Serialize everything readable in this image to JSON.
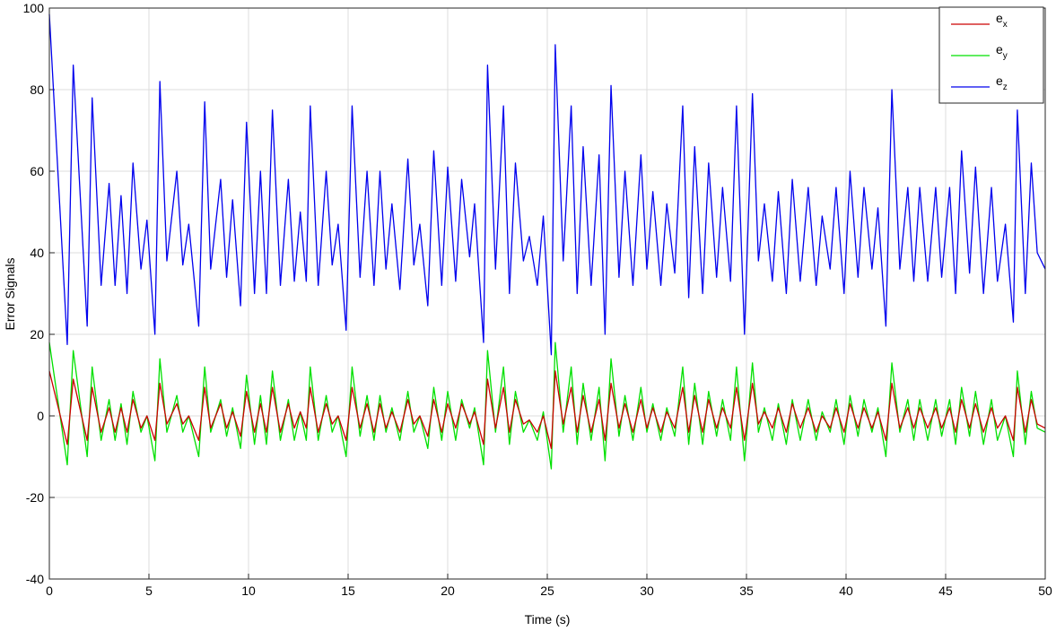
{
  "chart_data": {
    "type": "line",
    "xlabel": "Time (s)",
    "ylabel": "Error Signals",
    "xlim": [
      0,
      50
    ],
    "xticks": [
      0,
      5,
      10,
      15,
      20,
      25,
      30,
      35,
      40,
      45,
      50
    ],
    "ylim": [
      -40,
      100
    ],
    "yticks": [
      -40,
      -20,
      0,
      20,
      40,
      60,
      80,
      100
    ],
    "grid": true,
    "legend": "top-right",
    "x": [
      0,
      0.9,
      1.2,
      1.9,
      2.15,
      2.6,
      3.0,
      3.3,
      3.6,
      3.9,
      4.2,
      4.6,
      4.9,
      5.3,
      5.55,
      5.9,
      6.4,
      6.7,
      7.0,
      7.5,
      7.8,
      8.1,
      8.6,
      8.9,
      9.2,
      9.6,
      9.9,
      10.3,
      10.6,
      10.9,
      11.2,
      11.6,
      12.0,
      12.3,
      12.6,
      12.9,
      13.1,
      13.5,
      13.9,
      14.2,
      14.5,
      14.9,
      15.2,
      15.6,
      15.95,
      16.3,
      16.6,
      16.9,
      17.2,
      17.6,
      18.0,
      18.3,
      18.6,
      19.0,
      19.3,
      19.7,
      20.0,
      20.4,
      20.7,
      21.1,
      21.35,
      21.8,
      22.0,
      22.4,
      22.8,
      23.1,
      23.4,
      23.8,
      24.1,
      24.5,
      24.8,
      25.2,
      25.4,
      25.8,
      26.2,
      26.5,
      26.8,
      27.2,
      27.6,
      27.9,
      28.2,
      28.6,
      28.9,
      29.3,
      29.7,
      30.0,
      30.3,
      30.7,
      31.0,
      31.4,
      31.8,
      32.1,
      32.4,
      32.8,
      33.1,
      33.5,
      33.8,
      34.2,
      34.5,
      34.9,
      35.3,
      35.6,
      35.9,
      36.3,
      36.6,
      37.0,
      37.3,
      37.7,
      38.1,
      38.5,
      38.8,
      39.2,
      39.5,
      39.9,
      40.2,
      40.6,
      40.9,
      41.3,
      41.6,
      42.0,
      42.3,
      42.7,
      43.1,
      43.4,
      43.7,
      44.1,
      44.5,
      44.8,
      45.2,
      45.5,
      45.8,
      46.2,
      46.5,
      46.9,
      47.3,
      47.6,
      48.0,
      48.4,
      48.6,
      49.0,
      49.3,
      49.6,
      50
    ],
    "series": [
      {
        "name": "ex",
        "color": "#cc0000",
        "values": [
          11,
          -7,
          9,
          -6,
          7,
          -4,
          2,
          -4,
          2,
          -4,
          4,
          -3,
          0,
          -6,
          8,
          -2,
          3,
          -2,
          0,
          -6,
          7,
          -3,
          3,
          -3,
          1,
          -5,
          6,
          -4,
          3,
          -4,
          7,
          -4,
          3,
          -3,
          1,
          -3,
          7,
          -4,
          3,
          -2,
          0,
          -6,
          7,
          -3,
          3,
          -4,
          3,
          -3,
          1,
          -4,
          4,
          -2,
          0,
          -5,
          4,
          -4,
          3,
          -3,
          3,
          -2,
          1,
          -7,
          9,
          -3,
          7,
          -4,
          4,
          -2,
          -1,
          -4,
          0,
          -8,
          11,
          -2,
          7,
          -4,
          5,
          -4,
          4,
          -6,
          8,
          -3,
          3,
          -4,
          4,
          -3,
          2,
          -4,
          1,
          -3,
          7,
          -4,
          5,
          -4,
          4,
          -3,
          2,
          -3,
          7,
          -6,
          8,
          -2,
          1,
          -3,
          2,
          -4,
          3,
          -3,
          2,
          -4,
          0,
          -3,
          2,
          -4,
          3,
          -3,
          2,
          -3,
          1,
          -6,
          8,
          -3,
          2,
          -3,
          2,
          -3,
          2,
          -3,
          2,
          -4,
          4,
          -3,
          3,
          -4,
          2,
          -3,
          0,
          -6,
          7,
          -4,
          4,
          -2,
          -3
        ]
      },
      {
        "name": "ey",
        "color": "#00e000",
        "values": [
          18,
          -12,
          16,
          -10,
          12,
          -6,
          4,
          -6,
          3,
          -7,
          6,
          -4,
          0,
          -11,
          14,
          -4,
          5,
          -4,
          0,
          -10,
          12,
          -4,
          4,
          -5,
          2,
          -8,
          10,
          -7,
          5,
          -7,
          11,
          -6,
          4,
          -6,
          1,
          -6,
          12,
          -6,
          5,
          -4,
          0,
          -10,
          12,
          -5,
          5,
          -6,
          5,
          -4,
          2,
          -6,
          6,
          -4,
          0,
          -8,
          7,
          -6,
          6,
          -6,
          4,
          -3,
          2,
          -12,
          16,
          -4,
          12,
          -7,
          6,
          -4,
          -1,
          -6,
          1,
          -13,
          18,
          -4,
          12,
          -7,
          8,
          -6,
          7,
          -11,
          14,
          -5,
          5,
          -6,
          7,
          -4,
          3,
          -6,
          2,
          -5,
          12,
          -7,
          8,
          -7,
          6,
          -5,
          4,
          -6,
          12,
          -11,
          13,
          -4,
          2,
          -6,
          3,
          -7,
          4,
          -6,
          4,
          -6,
          1,
          -4,
          4,
          -7,
          5,
          -5,
          4,
          -4,
          2,
          -10,
          13,
          -4,
          4,
          -6,
          4,
          -6,
          4,
          -5,
          4,
          -7,
          7,
          -5,
          6,
          -7,
          4,
          -6,
          0,
          -10,
          11,
          -7,
          6,
          -3,
          -4
        ]
      },
      {
        "name": "ez",
        "color": "#0000ee",
        "values": [
          98.5,
          17.5,
          86,
          22,
          78,
          32,
          57,
          32,
          54,
          30,
          62,
          36,
          48,
          20,
          82,
          38,
          60,
          37,
          47,
          22,
          77,
          36,
          58,
          34,
          53,
          27,
          72,
          30,
          60,
          30,
          75,
          32,
          58,
          33,
          50,
          33,
          76,
          32,
          60,
          37,
          47,
          21,
          76,
          34,
          60,
          32,
          60,
          36,
          52,
          31,
          63,
          37,
          47,
          27,
          65,
          32,
          61,
          33,
          58,
          39,
          52,
          18,
          86,
          36,
          76,
          30,
          62,
          38,
          44,
          32,
          49,
          15,
          91,
          38,
          76,
          30,
          66,
          32,
          64,
          20,
          81,
          34,
          60,
          32,
          64,
          36,
          55,
          32,
          52,
          35,
          76,
          29,
          66,
          30,
          62,
          34,
          56,
          33,
          76,
          20,
          79,
          38,
          52,
          33,
          55,
          30,
          58,
          33,
          56,
          32,
          49,
          36,
          56,
          30,
          60,
          34,
          56,
          36,
          51,
          22,
          80,
          36,
          56,
          33,
          56,
          33,
          56,
          34,
          56,
          30,
          65,
          35,
          61,
          30,
          56,
          33,
          47,
          23,
          75,
          30,
          62,
          40,
          36
        ]
      }
    ]
  }
}
